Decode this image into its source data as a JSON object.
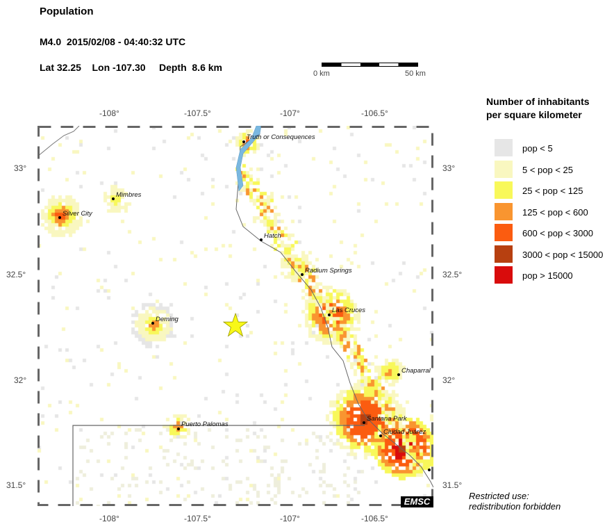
{
  "header": {
    "title": "Population",
    "event": "M4.0  2015/02/08 - 04:40:32 UTC",
    "location": "Lat 32.25    Lon -107.30     Depth  8.6 km"
  },
  "scale_bar": {
    "left_label": "0 km",
    "right_label": "50 km"
  },
  "legend": {
    "title_line1": "Number of inhabitants",
    "title_line2": "per square kilometer",
    "items": [
      {
        "label": "pop < 5",
        "color": "#e6e6e6"
      },
      {
        "label": "5 < pop < 25",
        "color": "#f9f7c0"
      },
      {
        "label": "25 < pop < 125",
        "color": "#f8f85a"
      },
      {
        "label": "125 < pop < 600",
        "color": "#f99530"
      },
      {
        "label": "600 < pop < 3000",
        "color": "#fb5c10"
      },
      {
        "label": "3000 < pop < 15000",
        "color": "#b74010"
      },
      {
        "label": "pop > 15000",
        "color": "#d90c0c"
      }
    ]
  },
  "axes": {
    "lon_ticks": [
      "-108°",
      "-107.5°",
      "-107°",
      "-106.5°"
    ],
    "lat_ticks": [
      "33°",
      "32.5°",
      "32°",
      "31.5°"
    ]
  },
  "cities": [
    {
      "name": "Truth or Consequences"
    },
    {
      "name": "Mimbres"
    },
    {
      "name": "Silver City"
    },
    {
      "name": "Hatch"
    },
    {
      "name": "Radium Springs"
    },
    {
      "name": "Las Cruces"
    },
    {
      "name": "Deming"
    },
    {
      "name": "Chaparral"
    },
    {
      "name": "Santana Park"
    },
    {
      "name": "Puerto Palomas"
    },
    {
      "name": "Ciudad Juárez"
    }
  ],
  "epicenter": {
    "symbol": "star-icon",
    "color": "#f8f818"
  },
  "badge": "EMSC",
  "note": {
    "line1": "Restricted use:",
    "line2": "redistribution forbidden"
  }
}
